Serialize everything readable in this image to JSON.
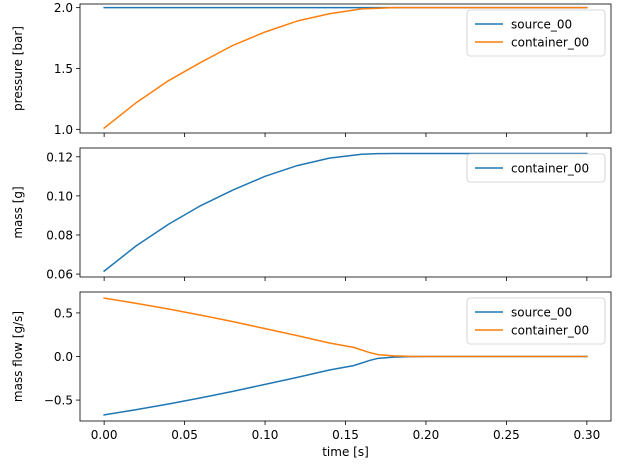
{
  "chart_data": [
    {
      "type": "line",
      "xlabel": "",
      "ylabel": "pressure [bar]",
      "xlim": [
        -0.015,
        0.315
      ],
      "ylim": [
        0.97,
        2.03
      ],
      "xticks": [
        0.0,
        0.05,
        0.1,
        0.15,
        0.2,
        0.25,
        0.3
      ],
      "xtick_labels": [],
      "yticks": [
        1.0,
        1.5,
        2.0
      ],
      "ytick_labels": [
        "1.0",
        "1.5",
        "2.0"
      ],
      "legend": "top-right",
      "grid": false,
      "series": [
        {
          "name": "source_00",
          "color": "#1f77b4",
          "x": [
            0.0,
            0.3
          ],
          "y": [
            2.0,
            2.0
          ]
        },
        {
          "name": "container_00",
          "color": "#ff7f0e",
          "x": [
            0.0,
            0.02,
            0.04,
            0.06,
            0.08,
            0.1,
            0.12,
            0.14,
            0.16,
            0.17,
            0.18,
            0.19,
            0.2,
            0.22,
            0.24,
            0.26,
            0.28,
            0.3
          ],
          "y": [
            1.01,
            1.22,
            1.4,
            1.55,
            1.69,
            1.8,
            1.89,
            1.95,
            1.99,
            1.995,
            2.0,
            2.0,
            2.0,
            2.0,
            2.0,
            2.0,
            2.0,
            2.0
          ]
        }
      ]
    },
    {
      "type": "line",
      "xlabel": "",
      "ylabel": "mass [g]",
      "xlim": [
        -0.015,
        0.315
      ],
      "ylim": [
        0.0585,
        0.1245
      ],
      "xticks": [
        0.0,
        0.05,
        0.1,
        0.15,
        0.2,
        0.25,
        0.3
      ],
      "xtick_labels": [],
      "yticks": [
        0.06,
        0.08,
        0.1,
        0.12
      ],
      "ytick_labels": [
        "0.06",
        "0.08",
        "0.10",
        "0.12"
      ],
      "legend": "top-right",
      "grid": false,
      "series": [
        {
          "name": "container_00",
          "color": "#1f77b4",
          "x": [
            0.0,
            0.02,
            0.04,
            0.06,
            0.08,
            0.1,
            0.12,
            0.14,
            0.16,
            0.17,
            0.18,
            0.2,
            0.22,
            0.24,
            0.26,
            0.28,
            0.3
          ],
          "y": [
            0.0615,
            0.0745,
            0.0855,
            0.095,
            0.103,
            0.11,
            0.1155,
            0.1193,
            0.1213,
            0.1216,
            0.1217,
            0.1217,
            0.1217,
            0.1217,
            0.1217,
            0.1217,
            0.1217
          ]
        }
      ]
    },
    {
      "type": "line",
      "xlabel": "time [s]",
      "ylabel": "mass flow [g/s]",
      "xlim": [
        -0.015,
        0.315
      ],
      "ylim": [
        -0.74,
        0.74
      ],
      "xticks": [
        0.0,
        0.05,
        0.1,
        0.15,
        0.2,
        0.25,
        0.3
      ],
      "xtick_labels": [
        "0.00",
        "0.05",
        "0.10",
        "0.15",
        "0.20",
        "0.25",
        "0.30"
      ],
      "yticks": [
        -0.5,
        0.0,
        0.5
      ],
      "ytick_labels": [
        "−0.5",
        "0.0",
        "0.5"
      ],
      "legend": "top-right",
      "grid": false,
      "series": [
        {
          "name": "source_00",
          "color": "#1f77b4",
          "x": [
            0.0,
            0.02,
            0.04,
            0.06,
            0.08,
            0.1,
            0.12,
            0.14,
            0.155,
            0.165,
            0.17,
            0.18,
            0.19,
            0.2,
            0.22,
            0.25,
            0.3
          ],
          "y": [
            -0.67,
            -0.61,
            -0.545,
            -0.475,
            -0.4,
            -0.32,
            -0.24,
            -0.155,
            -0.105,
            -0.045,
            -0.022,
            -0.007,
            -0.002,
            0.0,
            0.0,
            0.0,
            0.0
          ]
        },
        {
          "name": "container_00",
          "color": "#ff7f0e",
          "x": [
            0.0,
            0.02,
            0.04,
            0.06,
            0.08,
            0.1,
            0.12,
            0.14,
            0.155,
            0.165,
            0.17,
            0.18,
            0.19,
            0.2,
            0.22,
            0.25,
            0.3
          ],
          "y": [
            0.67,
            0.61,
            0.545,
            0.475,
            0.4,
            0.32,
            0.24,
            0.155,
            0.105,
            0.045,
            0.022,
            0.007,
            0.002,
            0.0,
            0.0,
            0.0,
            0.0
          ]
        }
      ]
    }
  ]
}
